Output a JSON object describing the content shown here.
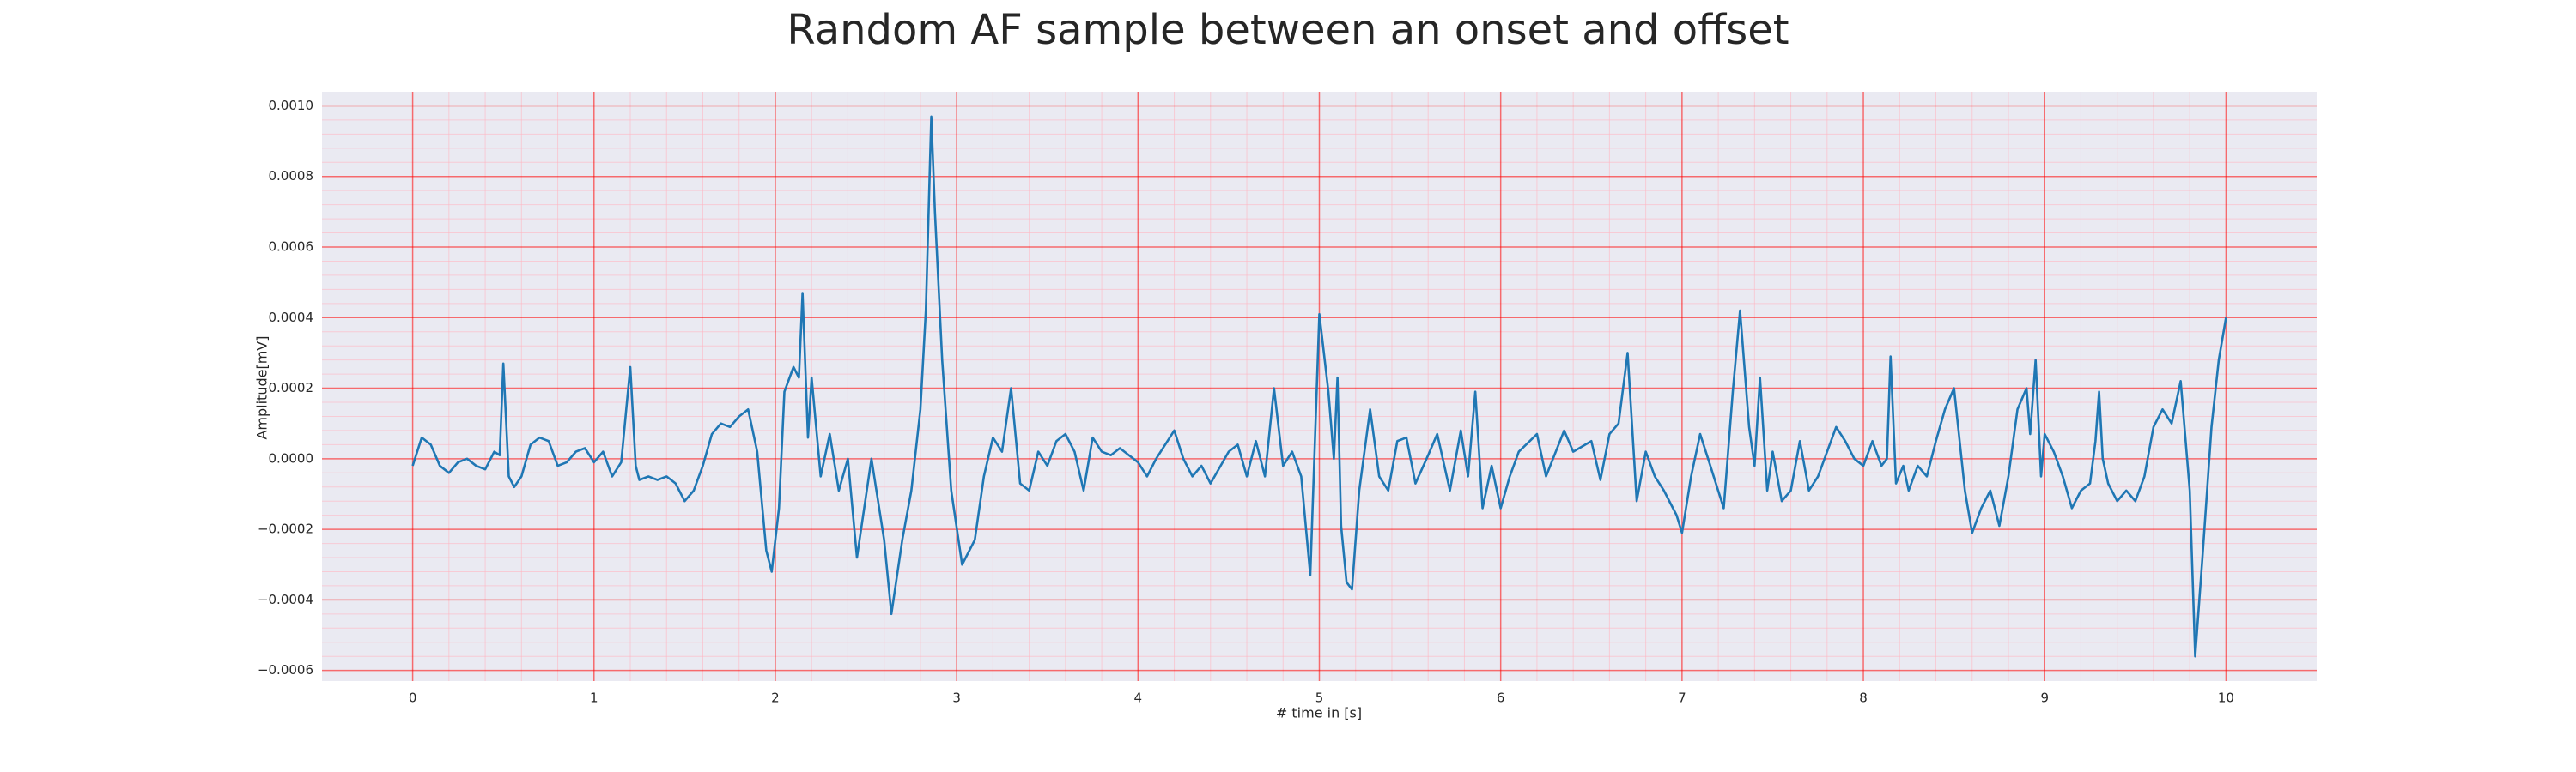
{
  "chart_data": {
    "type": "line",
    "title": "Random AF sample between an onset and offset",
    "xlabel": "# time in [s]",
    "ylabel": "Amplitude[mV]",
    "color": "#1f77b4",
    "grid": true,
    "minor_grid": true,
    "xlim": [
      -0.5,
      10.5
    ],
    "ylim": [
      -0.00063,
      0.00104
    ],
    "xticks": [
      0,
      1,
      2,
      3,
      4,
      5,
      6,
      7,
      8,
      9,
      10
    ],
    "yticks": [
      {
        "value": -0.0006,
        "label": "−0.0006"
      },
      {
        "value": -0.0004,
        "label": "−0.0004"
      },
      {
        "value": -0.0002,
        "label": "−0.0002"
      },
      {
        "value": 0,
        "label": "0.0000"
      },
      {
        "value": 0.0002,
        "label": "0.0002"
      },
      {
        "value": 0.0004,
        "label": "0.0004"
      },
      {
        "value": 0.0006,
        "label": "0.0006"
      },
      {
        "value": 0.0008,
        "label": "0.0008"
      },
      {
        "value": 0.001,
        "label": "0.0010"
      }
    ],
    "x": [
      0,
      0.05,
      0.1,
      0.15,
      0.2,
      0.25,
      0.3,
      0.35,
      0.4,
      0.45,
      0.48,
      0.5,
      0.53,
      0.56,
      0.6,
      0.65,
      0.7,
      0.75,
      0.8,
      0.85,
      0.9,
      0.95,
      1.0,
      1.05,
      1.1,
      1.15,
      1.2,
      1.23,
      1.25,
      1.3,
      1.35,
      1.4,
      1.45,
      1.5,
      1.55,
      1.6,
      1.65,
      1.7,
      1.75,
      1.8,
      1.85,
      1.9,
      1.95,
      1.98,
      2.02,
      2.05,
      2.1,
      2.13,
      2.15,
      2.18,
      2.2,
      2.25,
      2.3,
      2.35,
      2.4,
      2.45,
      2.53,
      2.6,
      2.64,
      2.7,
      2.75,
      2.8,
      2.83,
      2.86,
      2.88,
      2.92,
      2.97,
      3.03,
      3.1,
      3.15,
      3.2,
      3.25,
      3.3,
      3.35,
      3.4,
      3.45,
      3.5,
      3.55,
      3.6,
      3.65,
      3.7,
      3.75,
      3.8,
      3.85,
      3.9,
      3.95,
      4.0,
      4.05,
      4.1,
      4.2,
      4.25,
      4.3,
      4.35,
      4.4,
      4.5,
      4.55,
      4.6,
      4.65,
      4.7,
      4.75,
      4.8,
      4.85,
      4.9,
      4.95,
      5.0,
      5.05,
      5.08,
      5.1,
      5.12,
      5.15,
      5.18,
      5.22,
      5.28,
      5.33,
      5.38,
      5.43,
      5.48,
      5.53,
      5.6,
      5.65,
      5.72,
      5.78,
      5.82,
      5.86,
      5.9,
      5.95,
      6.0,
      6.05,
      6.1,
      6.2,
      6.25,
      6.35,
      6.4,
      6.5,
      6.55,
      6.6,
      6.65,
      6.7,
      6.75,
      6.8,
      6.85,
      6.9,
      6.97,
      7.0,
      7.05,
      7.1,
      7.15,
      7.23,
      7.28,
      7.32,
      7.37,
      7.4,
      7.43,
      7.47,
      7.5,
      7.55,
      7.6,
      7.65,
      7.7,
      7.75,
      7.85,
      7.9,
      7.95,
      8.0,
      8.05,
      8.1,
      8.13,
      8.15,
      8.18,
      8.22,
      8.25,
      8.3,
      8.35,
      8.4,
      8.45,
      8.5,
      8.56,
      8.6,
      8.65,
      8.7,
      8.75,
      8.8,
      8.85,
      8.9,
      8.92,
      8.95,
      8.98,
      9.0,
      9.05,
      9.1,
      9.15,
      9.2,
      9.25,
      9.28,
      9.3,
      9.32,
      9.35,
      9.4,
      9.45,
      9.5,
      9.55,
      9.6,
      9.65,
      9.7,
      9.75,
      9.8,
      9.83,
      9.87,
      9.92,
      9.96,
      10.0
    ],
    "values": [
      -2e-05,
      6e-05,
      4e-05,
      -2e-05,
      -4e-05,
      -1e-05,
      0,
      -2e-05,
      -3e-05,
      2e-05,
      1e-05,
      0.00027,
      -5e-05,
      -8e-05,
      -5e-05,
      4e-05,
      6e-05,
      5e-05,
      -2e-05,
      -1e-05,
      2e-05,
      3e-05,
      -1e-05,
      2e-05,
      -5e-05,
      -1e-05,
      0.00026,
      -2e-05,
      -6e-05,
      -5e-05,
      -6e-05,
      -5e-05,
      -7e-05,
      -0.00012,
      -9e-05,
      -2e-05,
      7e-05,
      0.0001,
      9e-05,
      0.00012,
      0.00014,
      2e-05,
      -0.00026,
      -0.00032,
      -0.00014,
      0.00019,
      0.00026,
      0.00023,
      0.00047,
      6e-05,
      0.00023,
      -5e-05,
      7e-05,
      -9e-05,
      0,
      -0.00028,
      0,
      -0.00023,
      -0.00044,
      -0.00023,
      -9e-05,
      0.00014,
      0.00042,
      0.00097,
      0.0007,
      0.00028,
      -9e-05,
      -0.0003,
      -0.00023,
      -5e-05,
      6e-05,
      2e-05,
      0.0002,
      -7e-05,
      -9e-05,
      2e-05,
      -2e-05,
      5e-05,
      7e-05,
      2e-05,
      -9e-05,
      6e-05,
      2e-05,
      1e-05,
      3e-05,
      1e-05,
      -1e-05,
      -5e-05,
      0,
      8e-05,
      0,
      -5e-05,
      -2e-05,
      -7e-05,
      2e-05,
      4e-05,
      -5e-05,
      5e-05,
      -5e-05,
      0.0002,
      -2e-05,
      2e-05,
      -5e-05,
      -0.00033,
      0.00041,
      0.00019,
      0,
      0.00023,
      -0.00019,
      -0.00035,
      -0.00037,
      -9e-05,
      0.00014,
      -5e-05,
      -9e-05,
      5e-05,
      6e-05,
      -7e-05,
      1e-05,
      7e-05,
      -9e-05,
      8e-05,
      -5e-05,
      0.00019,
      -0.00014,
      -2e-05,
      -0.00014,
      -5e-05,
      2e-05,
      7e-05,
      -5e-05,
      8e-05,
      2e-05,
      5e-05,
      -6e-05,
      7e-05,
      0.0001,
      0.0003,
      -0.00012,
      2e-05,
      -5e-05,
      -9e-05,
      -0.00016,
      -0.00021,
      -5e-05,
      7e-05,
      -1e-05,
      -0.00014,
      0.00019,
      0.00042,
      9e-05,
      -2e-05,
      0.00023,
      -9e-05,
      2e-05,
      -0.00012,
      -9e-05,
      5e-05,
      -9e-05,
      -5e-05,
      9e-05,
      5e-05,
      0,
      -2e-05,
      5e-05,
      -2e-05,
      0,
      0.00029,
      -7e-05,
      -2e-05,
      -9e-05,
      -2e-05,
      -5e-05,
      5e-05,
      0.00014,
      0.0002,
      -9e-05,
      -0.00021,
      -0.00014,
      -9e-05,
      -0.00019,
      -5e-05,
      0.00014,
      0.0002,
      7e-05,
      0.00028,
      -5e-05,
      7e-05,
      2e-05,
      -5e-05,
      -0.00014,
      -9e-05,
      -7e-05,
      5e-05,
      0.00019,
      0,
      -7e-05,
      -0.00012,
      -9e-05,
      -0.00012,
      -5e-05,
      9e-05,
      0.00014,
      0.0001,
      0.00022,
      -9e-05,
      -0.00056,
      -0.00028,
      9e-05,
      0.00028,
      0.0004
    ]
  }
}
